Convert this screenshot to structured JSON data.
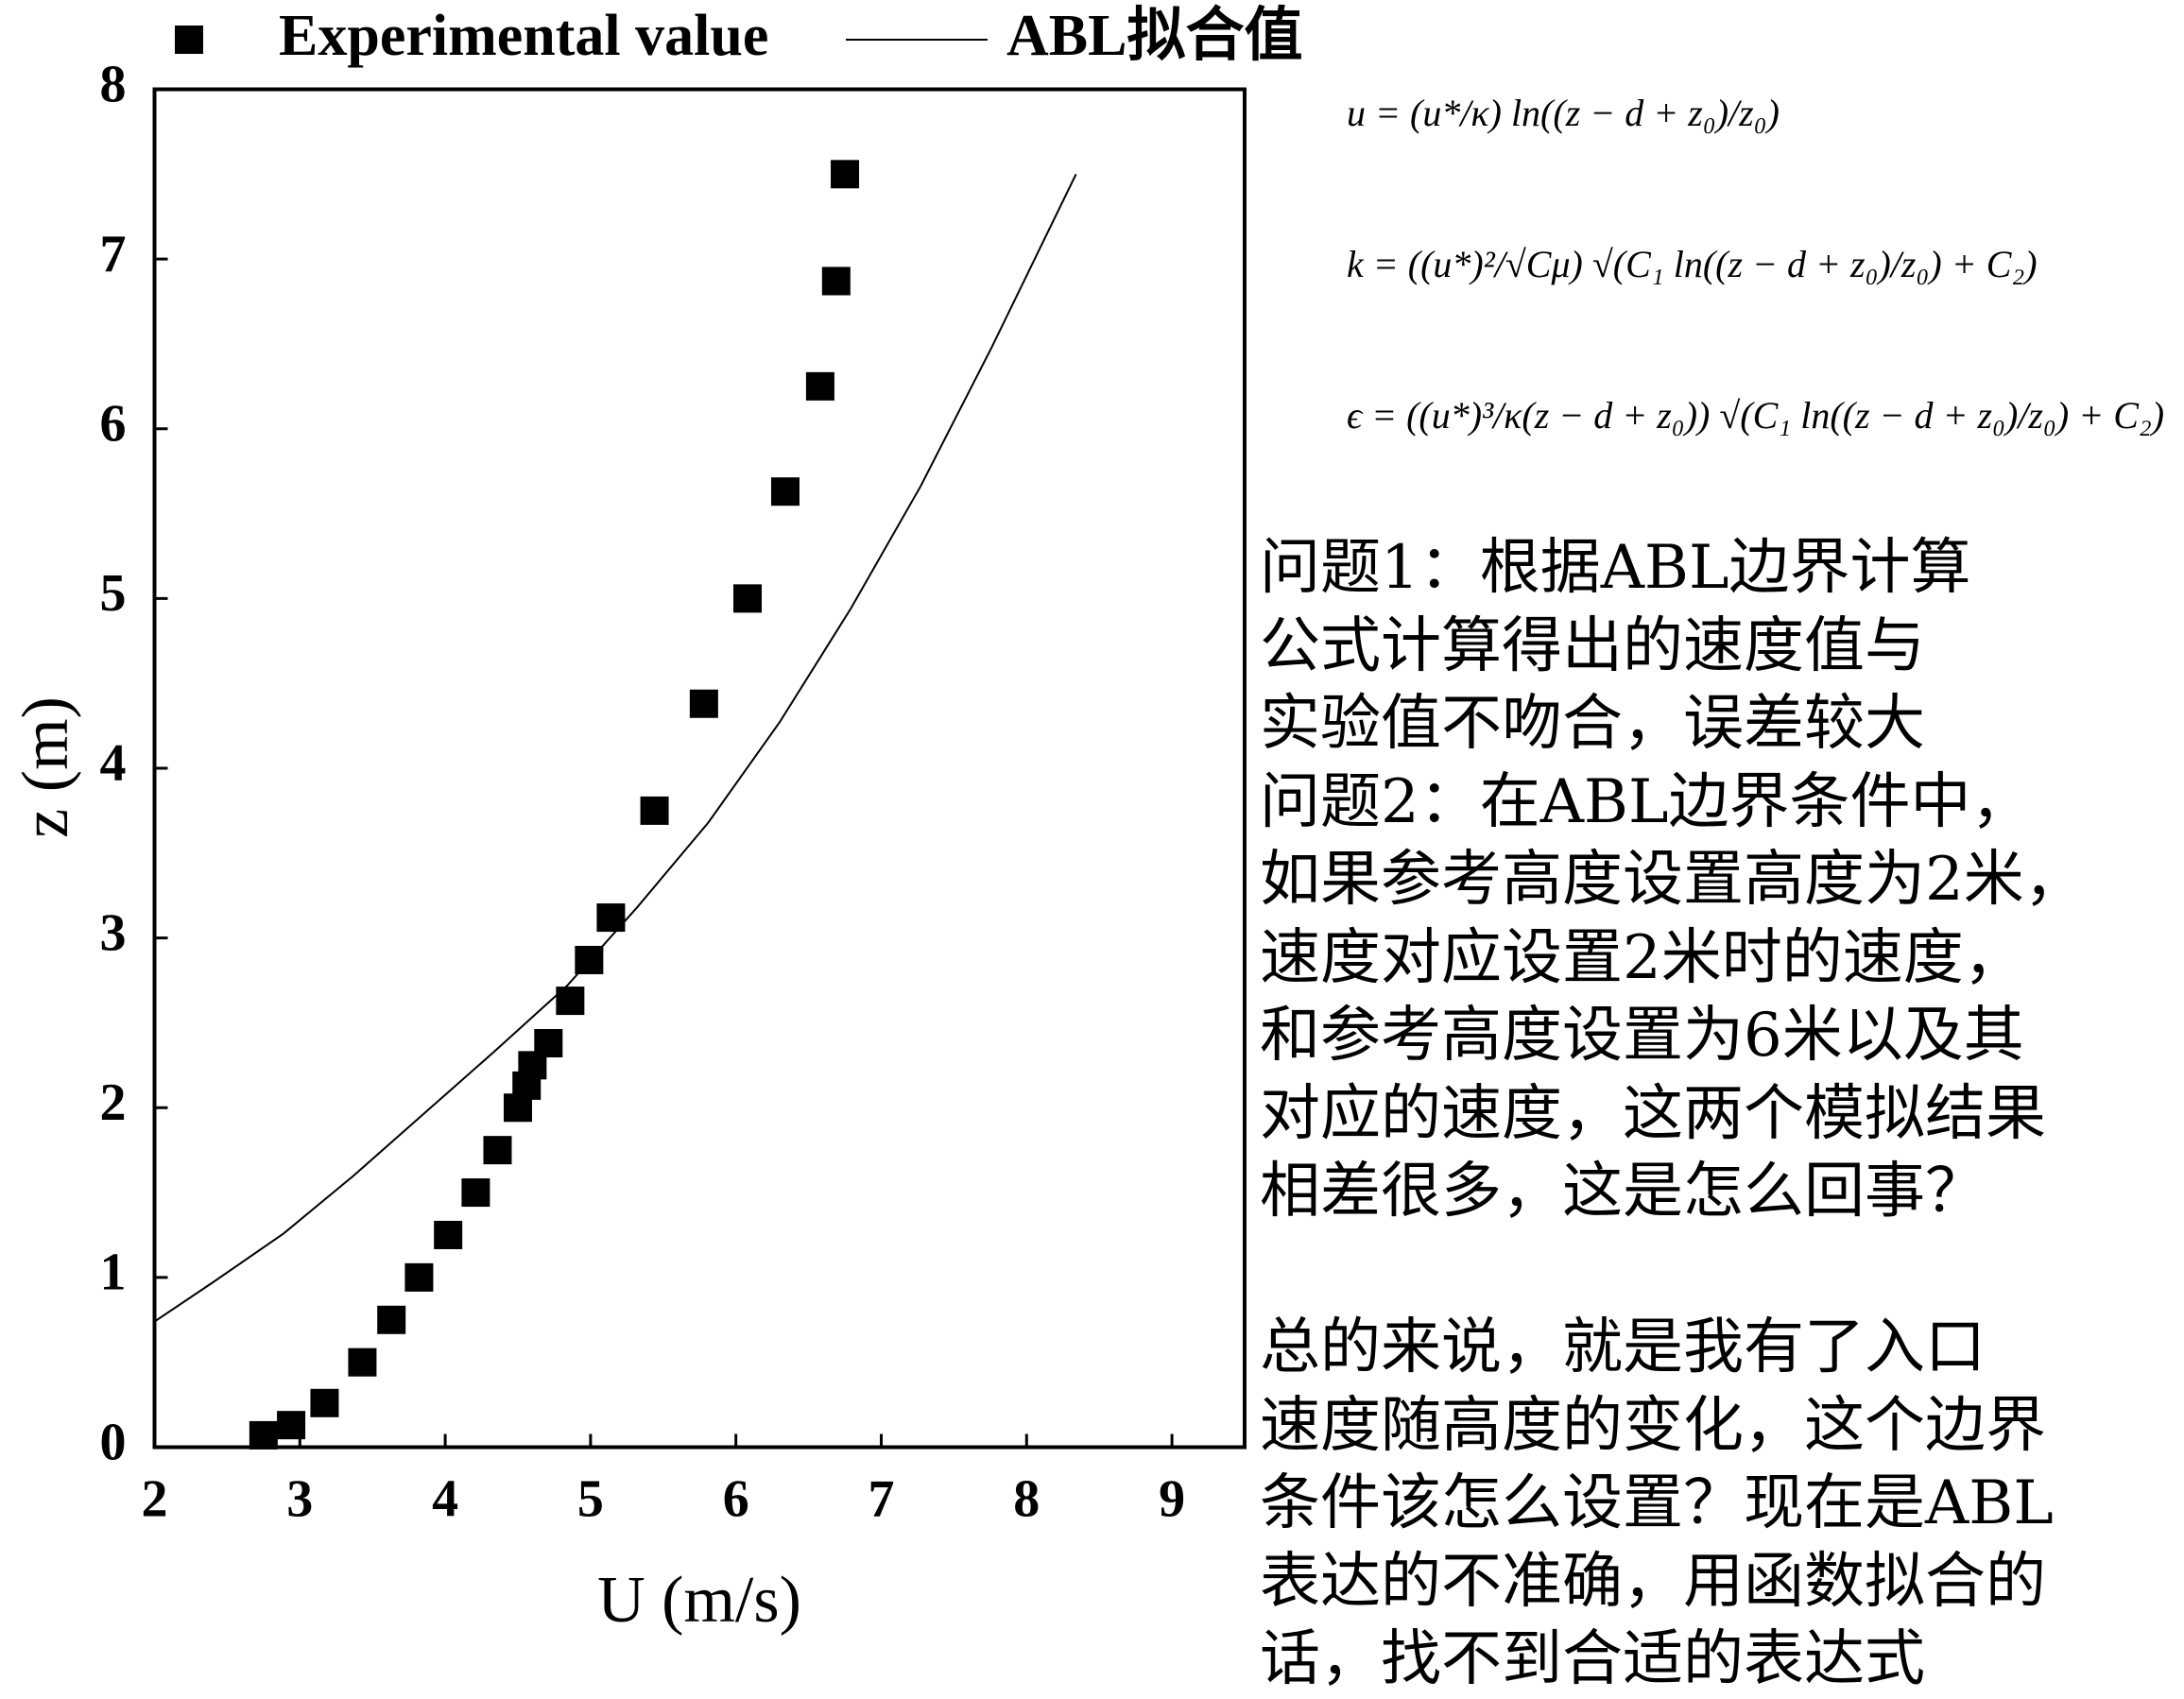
{
  "chart_data": {
    "type": "scatter-line",
    "xlabel": "U (m/s)",
    "ylabel": "z (m)",
    "xlim": [
      2,
      9.5
    ],
    "xticks": [
      2,
      3,
      4,
      5,
      6,
      7,
      8,
      9
    ],
    "ylim": [
      0,
      8
    ],
    "yticks": [
      0,
      1,
      2,
      3,
      4,
      5,
      6,
      7,
      8
    ],
    "series": [
      {
        "name": "Experimental value",
        "kind": "scatter",
        "color": "#000000",
        "x": [
          2.75,
          2.94,
          3.17,
          3.43,
          3.63,
          3.82,
          4.02,
          4.21,
          4.36,
          4.5,
          4.56,
          4.6,
          4.71,
          4.86,
          4.99,
          5.14,
          5.44,
          5.78,
          6.08,
          6.34,
          6.58,
          6.69,
          6.75
        ],
        "values": [
          0.07,
          0.13,
          0.26,
          0.5,
          0.75,
          1.0,
          1.25,
          1.5,
          1.75,
          2.0,
          2.13,
          2.25,
          2.38,
          2.63,
          2.87,
          3.12,
          3.75,
          4.38,
          5.0,
          5.63,
          6.25,
          6.87,
          7.5
        ]
      },
      {
        "name": "ABL拟合值",
        "kind": "line",
        "color": "#000000",
        "x": [
          2.0,
          2.4,
          2.89,
          3.37,
          3.86,
          4.35,
          4.84,
          5.32,
          5.81,
          6.3,
          6.79,
          7.27,
          7.76,
          8.34
        ],
        "values": [
          0.74,
          0.97,
          1.26,
          1.6,
          1.97,
          2.34,
          2.72,
          3.18,
          3.68,
          4.27,
          4.94,
          5.66,
          6.48,
          7.5
        ]
      }
    ]
  },
  "formulas": [
    "u = (u*/κ) ln((z − d + z₀)/z₀)",
    "k = ((u*)²/√Cμ) √(C₁ ln((z − d + z₀)/z₀) + C₂)",
    "ϵ = ((u*)³/κ(z − d + z₀)) √(C₁ ln((z − d + z₀)/z₀) + C₂)"
  ],
  "text_lines": [
    "问题1：根据ABL边界计算",
    "公式计算得出的速度值与",
    "实验值不吻合，误差较大",
    "问题2：在ABL边界条件中，",
    "如果参考高度设置高度为2米，",
    "速度对应设置2米时的速度，",
    "和参考高度设置为6米以及其",
    "对应的速度，这两个模拟结果",
    "相差很多，这是怎么回事？",
    null,
    "总的来说，就是我有了入口",
    "速度随高度的变化，这个边界",
    "条件该怎么设置？现在是ABL",
    "表达的不准确，用函数拟合的",
    "话，找不到合适的表达式"
  ]
}
